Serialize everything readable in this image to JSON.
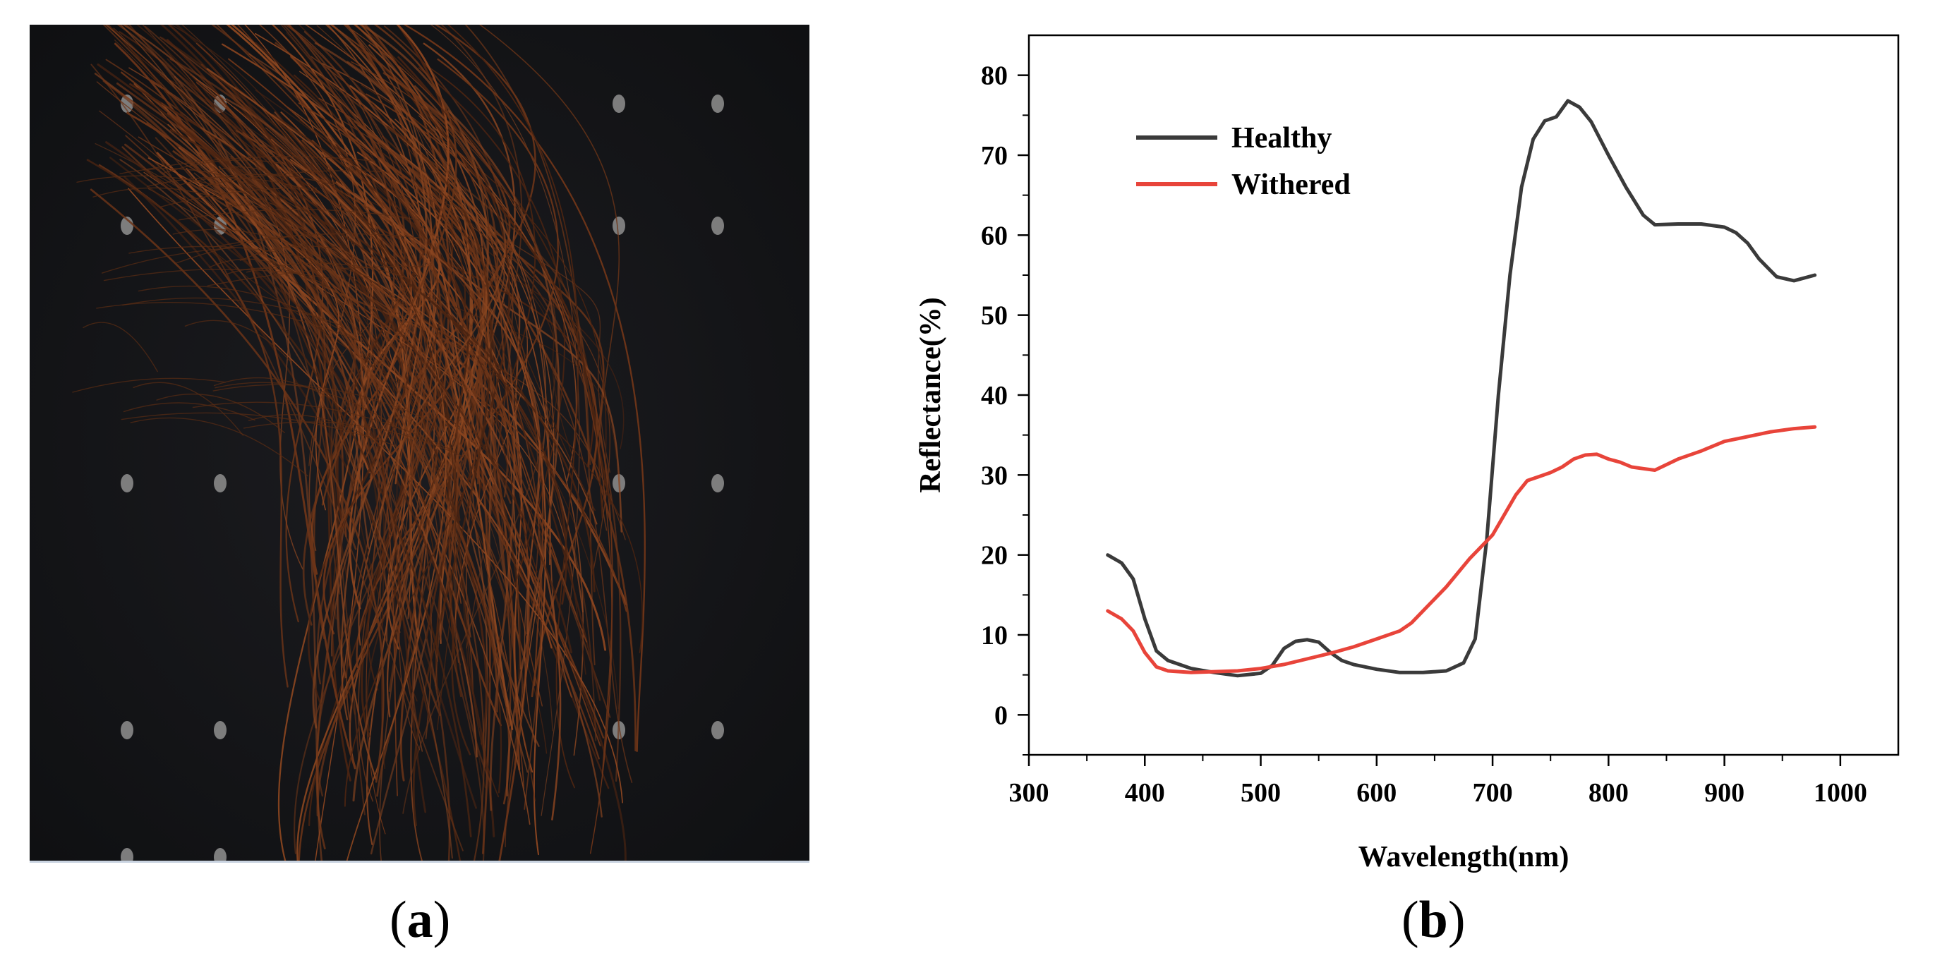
{
  "figure": {
    "panel_a_label": {
      "open": "(",
      "letter": "a",
      "close": ")"
    },
    "panel_b_label": {
      "open": "(",
      "letter": "b",
      "close": ")"
    },
    "photo": {
      "description_icon": "pine-needles-photo-icon",
      "background": "#17181b",
      "needle_color": "#6b3418"
    }
  },
  "chart_data": {
    "type": "line",
    "title": "",
    "xlabel": "Wavelength(nm)",
    "ylabel": "Reflectance(%)",
    "xlim": [
      300,
      1050
    ],
    "ylim": [
      -5,
      85
    ],
    "xticks": [
      300,
      400,
      500,
      600,
      700,
      800,
      900,
      1000
    ],
    "yticks": [
      0,
      10,
      20,
      30,
      40,
      50,
      60,
      70,
      80
    ],
    "legend_position": "top-left",
    "series": [
      {
        "name": "Healthy",
        "color": "#3a3a3a",
        "x": [
          368,
          380,
          390,
          400,
          410,
          420,
          440,
          460,
          480,
          500,
          510,
          520,
          530,
          540,
          550,
          560,
          570,
          580,
          600,
          620,
          640,
          660,
          675,
          685,
          695,
          705,
          715,
          725,
          735,
          745,
          755,
          765,
          775,
          785,
          800,
          815,
          830,
          840,
          860,
          880,
          900,
          910,
          920,
          930,
          945,
          960,
          978
        ],
        "y": [
          20,
          19,
          17,
          12,
          8,
          6.8,
          5.8,
          5.3,
          4.9,
          5.2,
          6.2,
          8.3,
          9.2,
          9.4,
          9.1,
          7.8,
          6.8,
          6.3,
          5.7,
          5.3,
          5.3,
          5.5,
          6.5,
          9.5,
          22,
          40,
          55,
          66,
          72,
          74.3,
          74.8,
          76.8,
          76,
          74.2,
          70,
          66,
          62.5,
          61.3,
          61.4,
          61.4,
          61,
          60.3,
          59,
          57,
          54.8,
          54.3,
          55
        ]
      },
      {
        "name": "Withered",
        "color": "#e8443a",
        "x": [
          368,
          380,
          390,
          400,
          410,
          420,
          440,
          460,
          480,
          500,
          520,
          540,
          560,
          580,
          600,
          620,
          630,
          640,
          660,
          680,
          700,
          710,
          720,
          730,
          740,
          750,
          760,
          770,
          780,
          790,
          800,
          810,
          820,
          830,
          840,
          860,
          880,
          900,
          920,
          940,
          960,
          978
        ],
        "y": [
          13,
          12,
          10.5,
          7.8,
          6.0,
          5.5,
          5.3,
          5.4,
          5.5,
          5.8,
          6.3,
          7.0,
          7.7,
          8.5,
          9.5,
          10.5,
          11.5,
          13,
          16,
          19.5,
          22.5,
          25,
          27.5,
          29.3,
          29.8,
          30.3,
          31,
          32,
          32.5,
          32.6,
          32,
          31.6,
          31,
          30.8,
          30.6,
          32,
          33,
          34.2,
          34.8,
          35.4,
          35.8,
          36
        ]
      }
    ]
  }
}
